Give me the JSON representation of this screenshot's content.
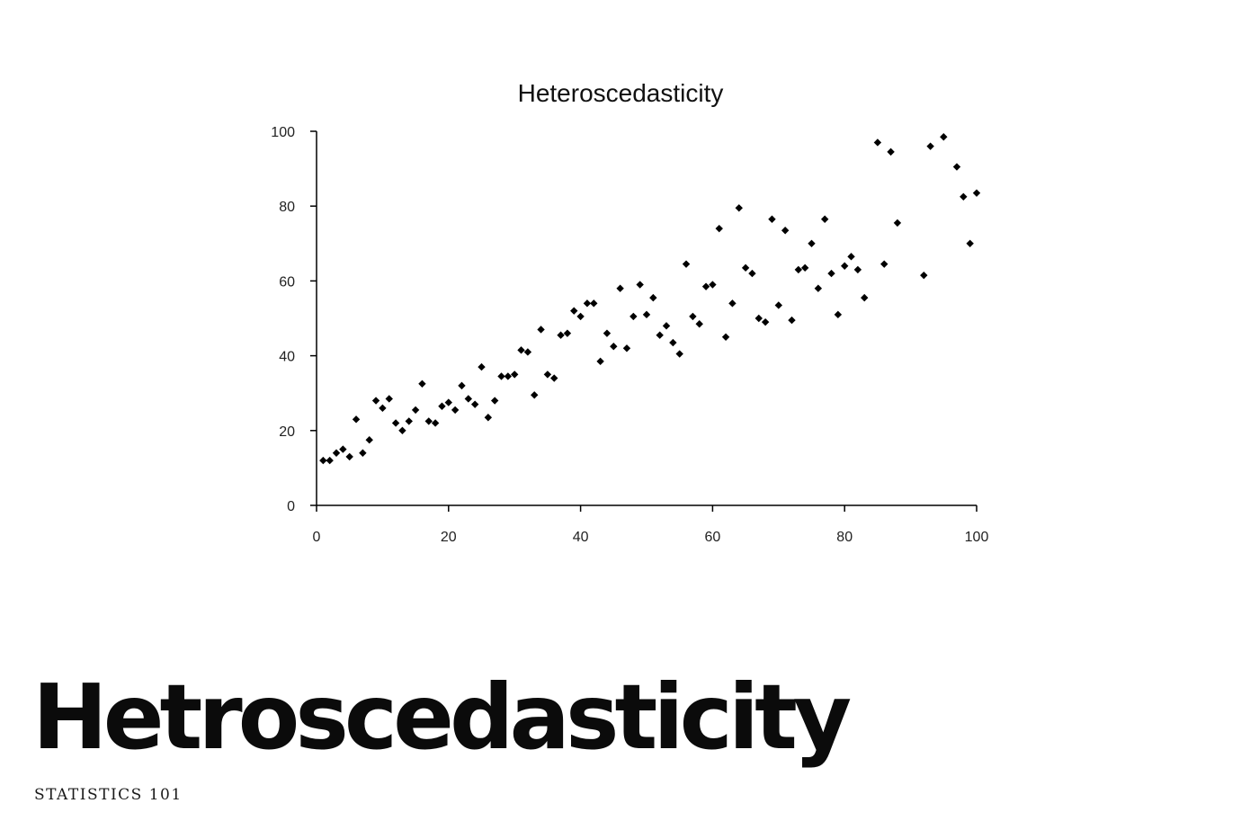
{
  "banner": {
    "headline": "Hetroscedasticity",
    "subline": "STATISTICS 101"
  },
  "colors": {
    "marker": "#000000",
    "axis": "#000000",
    "text": "#111111",
    "background": "#ffffff"
  },
  "chart_data": {
    "type": "scatter",
    "title": "Heteroscedasticity",
    "xlabel": "",
    "ylabel": "",
    "xlim": [
      0,
      100
    ],
    "ylim": [
      0,
      100
    ],
    "x_ticks": [
      0,
      20,
      40,
      60,
      80,
      100
    ],
    "y_ticks": [
      0,
      20,
      40,
      60,
      80,
      100
    ],
    "grid": false,
    "marker": "diamond",
    "points": [
      [
        1,
        12
      ],
      [
        2,
        12
      ],
      [
        3,
        14
      ],
      [
        4,
        15
      ],
      [
        5,
        13
      ],
      [
        6,
        23
      ],
      [
        7,
        14
      ],
      [
        8,
        17.5
      ],
      [
        9,
        28
      ],
      [
        10,
        26
      ],
      [
        11,
        28.5
      ],
      [
        12,
        22
      ],
      [
        13,
        20
      ],
      [
        14,
        22.5
      ],
      [
        15,
        25.5
      ],
      [
        16,
        32.5
      ],
      [
        17,
        22.5
      ],
      [
        18,
        22
      ],
      [
        19,
        26.5
      ],
      [
        20,
        27.5
      ],
      [
        21,
        25.5
      ],
      [
        22,
        32
      ],
      [
        23,
        28.5
      ],
      [
        24,
        27
      ],
      [
        25,
        37
      ],
      [
        26,
        23.5
      ],
      [
        27,
        28
      ],
      [
        28,
        34.5
      ],
      [
        29,
        34.5
      ],
      [
        30,
        35
      ],
      [
        31,
        41.5
      ],
      [
        32,
        41
      ],
      [
        33,
        29.5
      ],
      [
        34,
        47
      ],
      [
        35,
        35
      ],
      [
        36,
        34
      ],
      [
        37,
        45.5
      ],
      [
        38,
        46
      ],
      [
        39,
        52
      ],
      [
        40,
        50.5
      ],
      [
        41,
        54
      ],
      [
        42,
        54
      ],
      [
        43,
        38.5
      ],
      [
        44,
        46
      ],
      [
        45,
        42.5
      ],
      [
        46,
        58
      ],
      [
        47,
        42
      ],
      [
        48,
        50.5
      ],
      [
        49,
        59
      ],
      [
        50,
        51
      ],
      [
        51,
        55.5
      ],
      [
        52,
        45.5
      ],
      [
        53,
        48
      ],
      [
        54,
        43.5
      ],
      [
        55,
        40.5
      ],
      [
        56,
        64.5
      ],
      [
        57,
        50.5
      ],
      [
        58,
        48.5
      ],
      [
        59,
        58.5
      ],
      [
        60,
        59
      ],
      [
        61,
        74
      ],
      [
        62,
        45
      ],
      [
        63,
        54
      ],
      [
        64,
        79.5
      ],
      [
        65,
        63.5
      ],
      [
        66,
        62
      ],
      [
        67,
        50
      ],
      [
        68,
        49
      ],
      [
        69,
        76.5
      ],
      [
        70,
        53.5
      ],
      [
        71,
        73.5
      ],
      [
        72,
        49.5
      ],
      [
        73,
        63
      ],
      [
        74,
        63.5
      ],
      [
        75,
        70
      ],
      [
        76,
        58
      ],
      [
        77,
        76.5
      ],
      [
        78,
        62
      ],
      [
        79,
        51
      ],
      [
        80,
        64
      ],
      [
        81,
        66.5
      ],
      [
        82,
        63
      ],
      [
        83,
        55.5
      ],
      [
        85,
        97
      ],
      [
        86,
        64.5
      ],
      [
        87,
        94.5
      ],
      [
        88,
        75.5
      ],
      [
        92,
        61.5
      ],
      [
        93,
        96
      ],
      [
        95,
        98.5
      ],
      [
        97,
        90.5
      ],
      [
        98,
        82.5
      ],
      [
        99,
        70
      ],
      [
        100,
        83.5
      ]
    ]
  }
}
